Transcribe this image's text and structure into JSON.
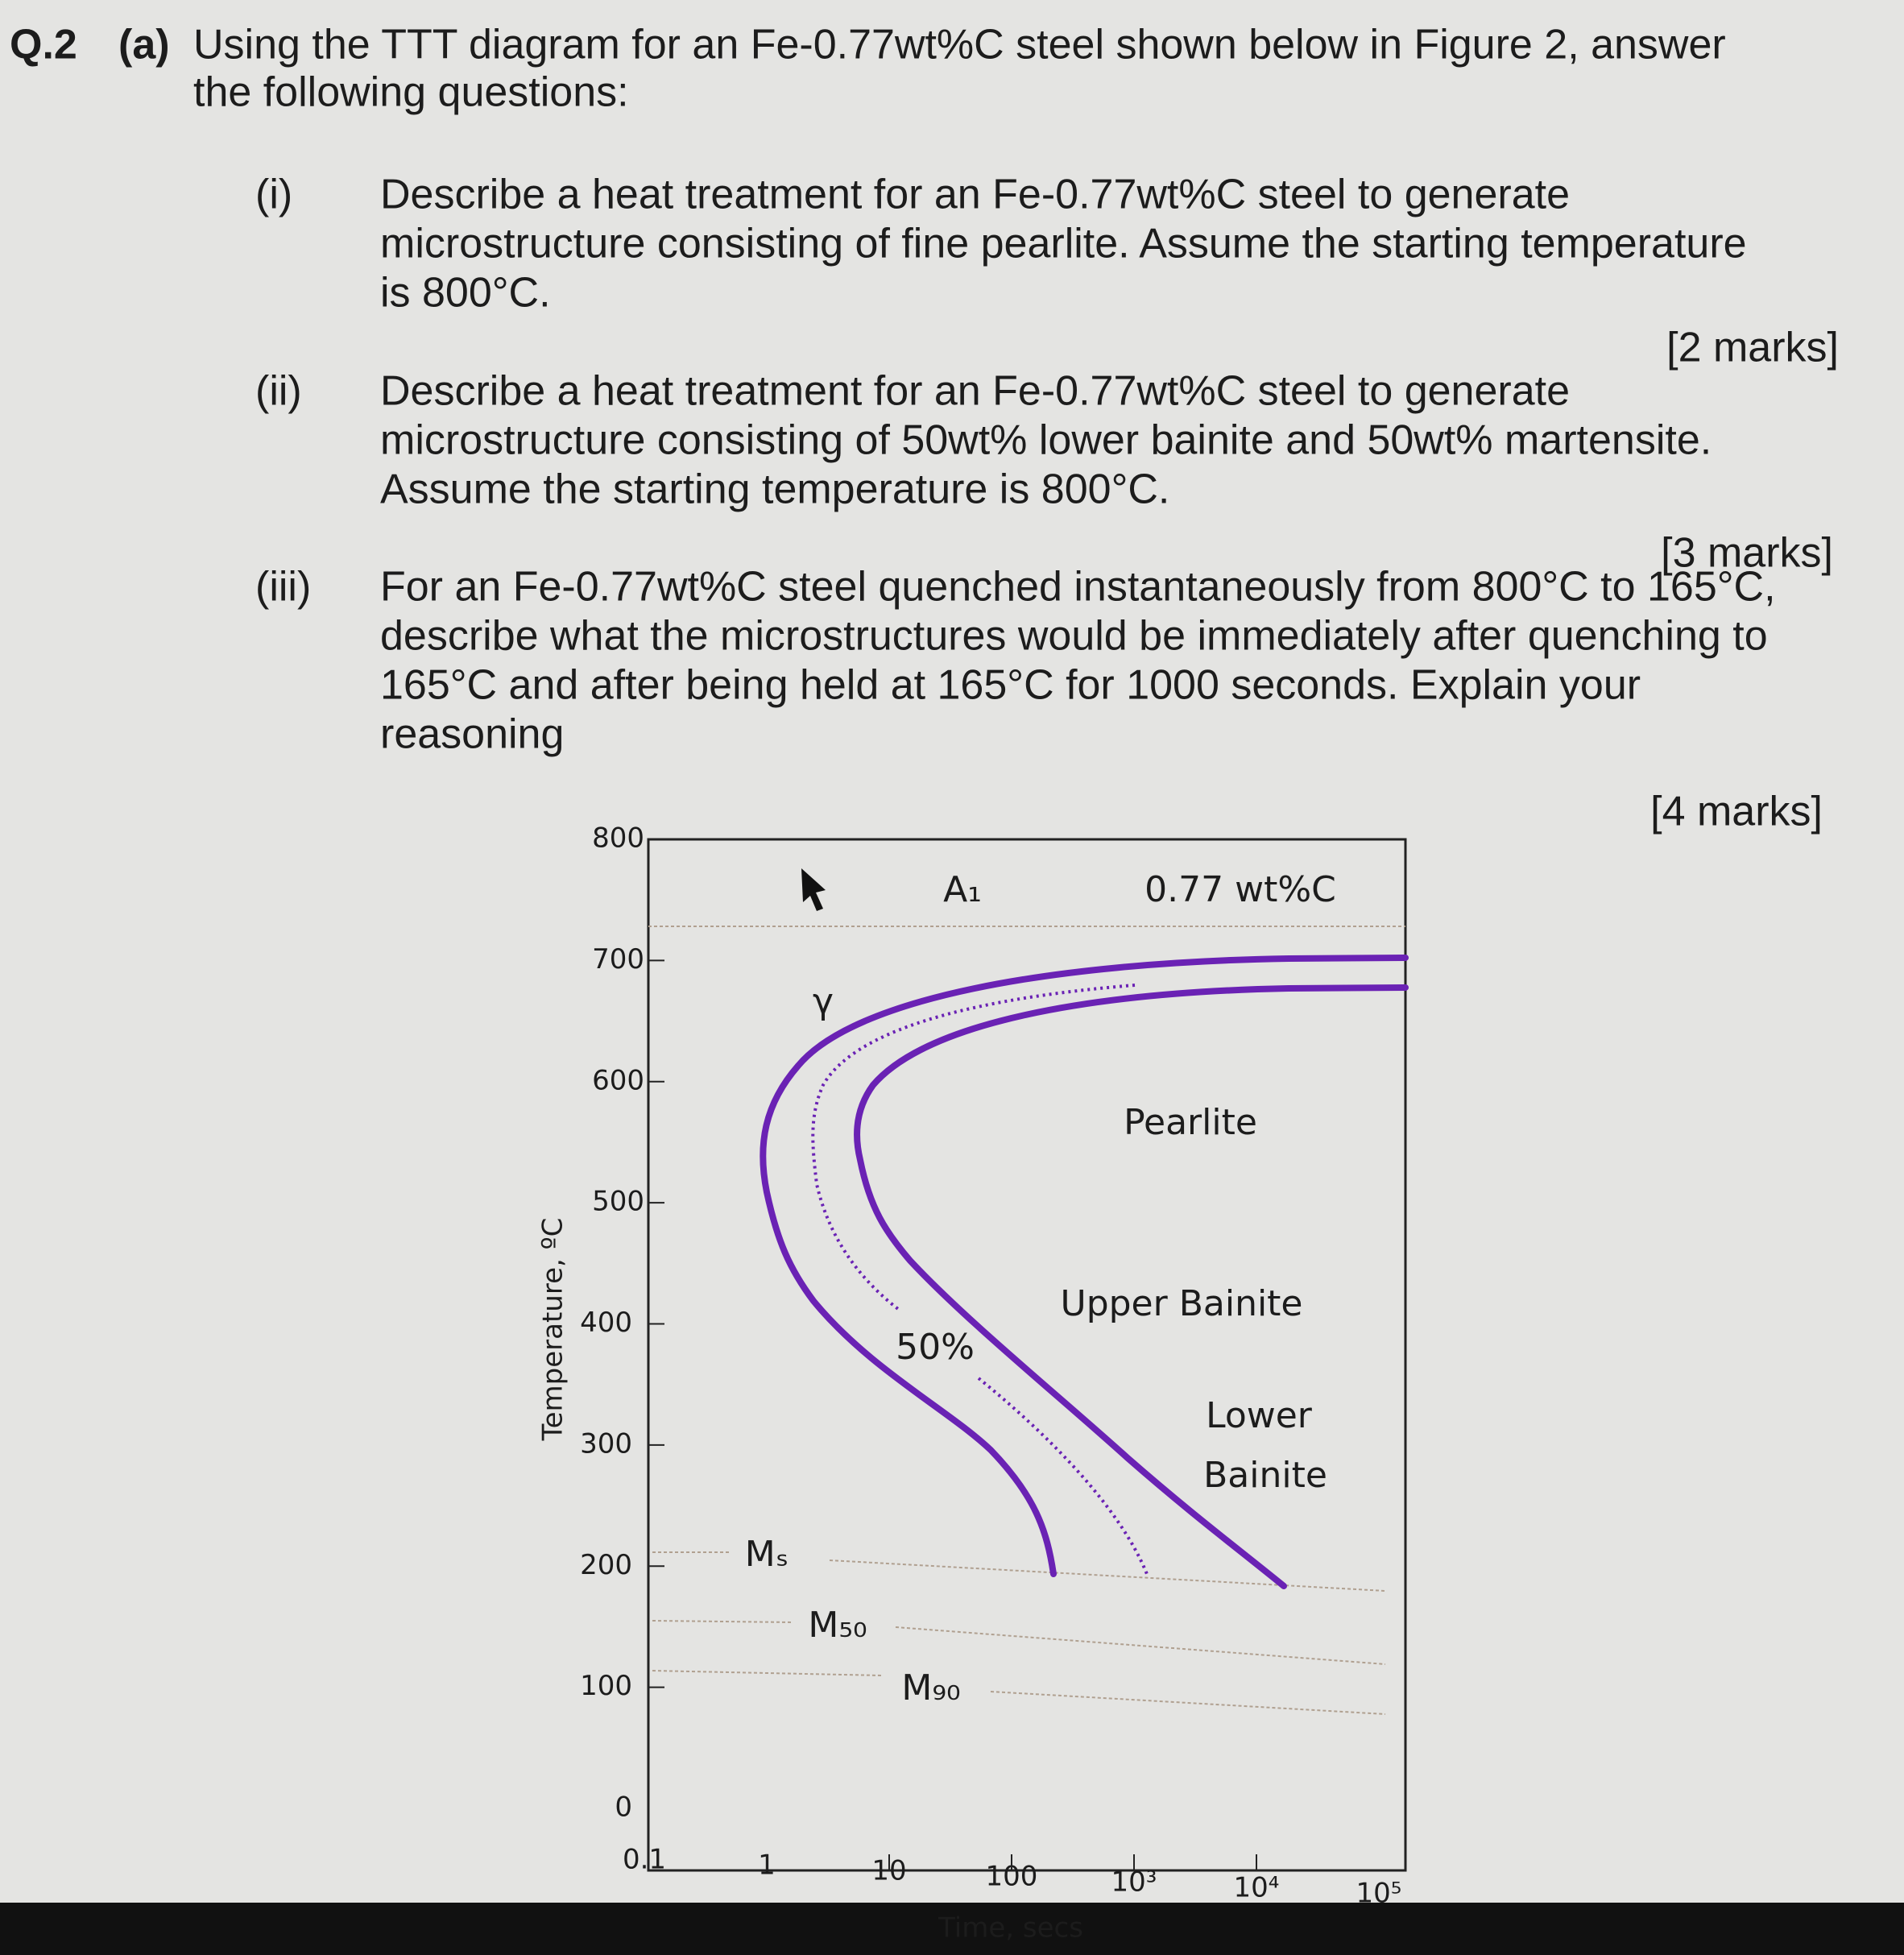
{
  "question": {
    "number": "Q.2",
    "part": "(a)",
    "intro": [
      "Using the TTT diagram for an Fe-0.77wt%C steel shown below in Figure 2, answer",
      "the following questions:"
    ]
  },
  "items": [
    {
      "label": "(i)",
      "lines": [
        "Describe a heat treatment for an Fe-0.77wt%C steel to generate",
        "microstructure consisting of fine pearlite. Assume the starting temperature",
        "is 800°C."
      ],
      "marks": "[2 marks]"
    },
    {
      "label": "(ii)",
      "lines": [
        "Describe a heat treatment for an Fe-0.77wt%C steel to generate",
        "microstructure consisting of 50wt% lower bainite and 50wt% martensite.",
        "Assume the starting temperature is 800°C."
      ],
      "marks": "[3 marks]"
    },
    {
      "label": "(iii)",
      "lines": [
        "For an Fe-0.77wt%C steel quenched instantaneously from 800°C to 165°C,",
        "describe what the microstructures would be immediately after quenching to",
        "165°C and after being held at 165°C for 1000 seconds. Explain your",
        "reasoning"
      ],
      "marks": "[4 marks]"
    }
  ],
  "figure": {
    "y_axis_title": "Temperature, ºC",
    "x_axis_title": "Time, secs",
    "y_ticks": [
      "800",
      "700",
      "600",
      "500",
      "400",
      "300",
      "200",
      "100",
      "0"
    ],
    "x_ticks": [
      "0.1",
      "1",
      "10",
      "100",
      "10³",
      "10⁴",
      "10⁵"
    ],
    "labels": {
      "a1": "A₁",
      "composition": "0.77 wt%C",
      "gamma": "γ",
      "pearlite": "Pearlite",
      "upper_bainite": "Upper Bainite",
      "lower": "Lower",
      "bainite": "Bainite",
      "fifty": "50%",
      "ms": "Mₛ",
      "m50": "M₅₀",
      "m90": "M₉₀"
    }
  }
}
